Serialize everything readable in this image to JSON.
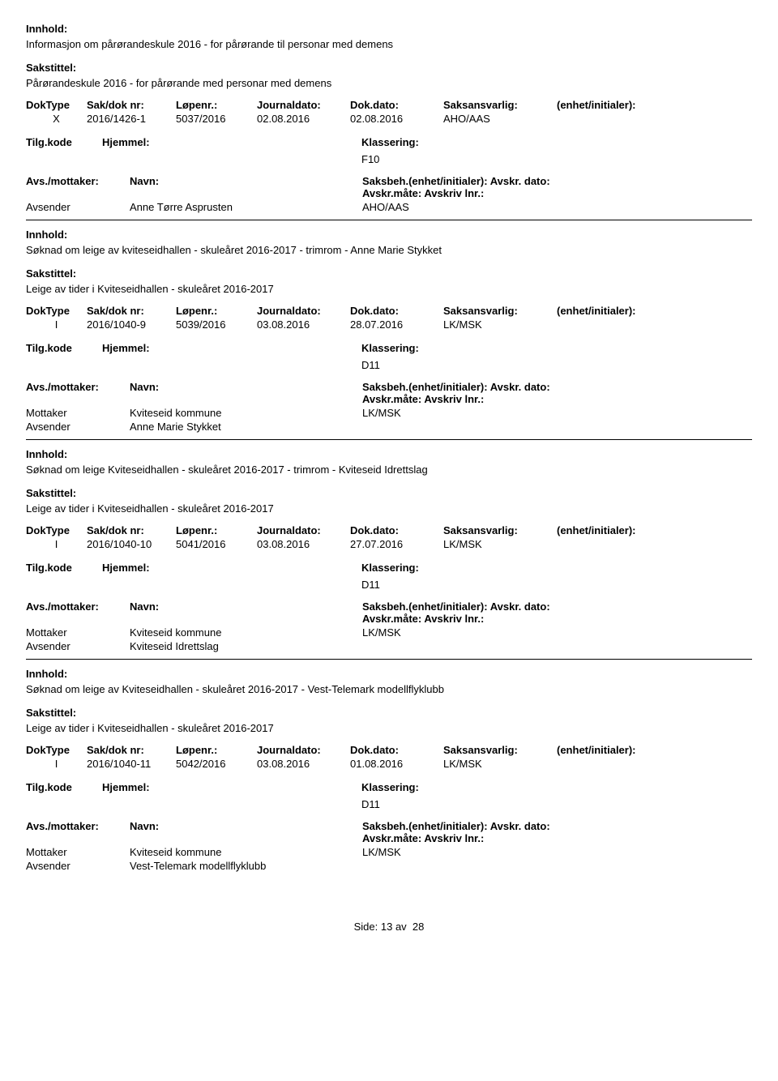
{
  "labels": {
    "innhold": "Innhold:",
    "sakstittel": "Sakstittel:",
    "doktype": "DokType",
    "sakdok": "Sak/dok nr:",
    "lopenr": "Løpenr.:",
    "journaldato": "Journaldato:",
    "dokdato": "Dok.dato:",
    "saksansvarlig": "Saksansvarlig:",
    "enhet": "(enhet/initialer):",
    "tilgkode": "Tilg.kode",
    "hjemmel": "Hjemmel:",
    "klassering": "Klassering:",
    "avsmottaker": "Avs./mottaker:",
    "navn": "Navn:",
    "saksbeh": "Saksbeh.(enhet/initialer):",
    "avskrdato": "Avskr. dato:",
    "avskrmate": "Avskr.måte:",
    "avskrivlnr": "Avskriv lnr.:",
    "mottaker": "Mottaker",
    "avsender": "Avsender"
  },
  "records": [
    {
      "innhold": "Informasjon om pårørandeskule 2016 - for pårørande til personar med demens",
      "sakstittel": "Pårørandeskule 2016 - for pårørande med personar med demens",
      "doktype": "X",
      "sakdok": "2016/1426-1",
      "lopenr": "5037/2016",
      "journaldato": "02.08.2016",
      "dokdato": "02.08.2016",
      "saksansvarlig": "AHO/AAS",
      "klassering": "F10",
      "saksbeh": "AHO/AAS",
      "parties": [
        {
          "role": "Avsender",
          "name": "Anne Tørre Asprusten"
        }
      ]
    },
    {
      "innhold": "Søknad om leige av kviteseidhallen -  skuleåret 2016-2017 - trimrom - Anne Marie Stykket",
      "sakstittel": "Leige av tider i Kviteseidhallen - skuleåret 2016-2017",
      "doktype": "I",
      "sakdok": "2016/1040-9",
      "lopenr": "5039/2016",
      "journaldato": "03.08.2016",
      "dokdato": "28.07.2016",
      "saksansvarlig": "LK/MSK",
      "klassering": "D11",
      "saksbeh": "LK/MSK",
      "parties": [
        {
          "role": "Mottaker",
          "name": "Kviteseid kommune"
        },
        {
          "role": "Avsender",
          "name": "Anne Marie Stykket"
        }
      ]
    },
    {
      "innhold": "Søknad om leige Kviteseidhallen - skuleåret 2016-2017 - trimrom - Kviteseid Idrettslag",
      "sakstittel": "Leige av tider i Kviteseidhallen - skuleåret 2016-2017",
      "doktype": "I",
      "sakdok": "2016/1040-10",
      "lopenr": "5041/2016",
      "journaldato": "03.08.2016",
      "dokdato": "27.07.2016",
      "saksansvarlig": "LK/MSK",
      "klassering": "D11",
      "saksbeh": "LK/MSK",
      "parties": [
        {
          "role": "Mottaker",
          "name": "Kviteseid kommune"
        },
        {
          "role": "Avsender",
          "name": "Kviteseid Idrettslag"
        }
      ]
    },
    {
      "innhold": "Søknad om leige av Kviteseidhallen - skuleåret 2016-2017 - Vest-Telemark modellflyklubb",
      "sakstittel": "Leige av tider i Kviteseidhallen - skuleåret 2016-2017",
      "doktype": "I",
      "sakdok": "2016/1040-11",
      "lopenr": "5042/2016",
      "journaldato": "03.08.2016",
      "dokdato": "01.08.2016",
      "saksansvarlig": "LK/MSK",
      "klassering": "D11",
      "saksbeh": "LK/MSK",
      "parties": [
        {
          "role": "Mottaker",
          "name": "Kviteseid kommune"
        },
        {
          "role": "Avsender",
          "name": "Vest-Telemark modellflyklubb"
        }
      ]
    }
  ],
  "footer": {
    "side": "Side:",
    "page": "13",
    "av": "av",
    "total": "28"
  }
}
